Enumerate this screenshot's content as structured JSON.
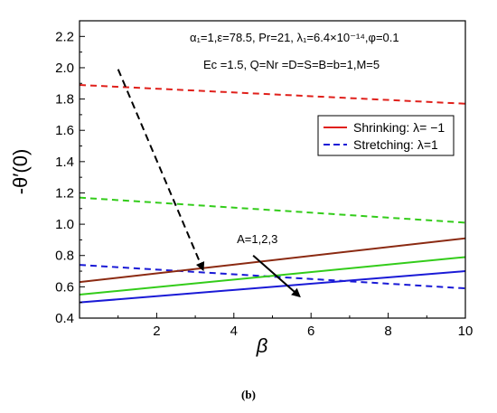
{
  "chart_data": {
    "type": "line",
    "xlabel": "β",
    "ylabel": "-θ′(0)",
    "xlim": [
      0,
      10
    ],
    "ylim": [
      0.4,
      2.3
    ],
    "x_ticks": [
      "2",
      "4",
      "6",
      "8",
      "10"
    ],
    "y_ticks": [
      "0.4",
      "0.6",
      "0.8",
      "1.0",
      "1.2",
      "1.4",
      "1.6",
      "1.8",
      "2.0",
      "2.2"
    ],
    "x_tick_values": [
      2,
      4,
      6,
      8,
      10
    ],
    "y_tick_values": [
      0.4,
      0.6,
      0.8,
      1.0,
      1.2,
      1.4,
      1.6,
      1.8,
      2.0,
      2.2
    ],
    "params_line1": "α₁=1,ε=78.5, Pr=21, λ₁=6.4×10⁻¹⁴,φ=0.1",
    "params_line2": "Ec =1.5, Q=Nr =D=S=B=b=1,M=5",
    "annotation": "A=1,2,3",
    "legend": [
      {
        "label": "Shrinking: λ= −1",
        "color": "#e0201b",
        "dash": "solid"
      },
      {
        "label": "Stretching: λ=1",
        "color": "#1a1ad6",
        "dash": "dashed"
      }
    ],
    "series": [
      {
        "group": "stretching",
        "color": "#e0201b",
        "dash": "dashed",
        "x": [
          0,
          10
        ],
        "y": [
          1.89,
          1.77
        ]
      },
      {
        "group": "stretching",
        "color": "#33cc1a",
        "dash": "dashed",
        "x": [
          0,
          10
        ],
        "y": [
          1.17,
          1.01
        ]
      },
      {
        "group": "stretching",
        "color": "#1a1ad6",
        "dash": "dashed",
        "x": [
          0,
          10
        ],
        "y": [
          0.74,
          0.59
        ]
      },
      {
        "group": "shrinking",
        "color": "#8b2a12",
        "dash": "solid",
        "x": [
          0,
          10
        ],
        "y": [
          0.63,
          0.91
        ]
      },
      {
        "group": "shrinking",
        "color": "#33cc1a",
        "dash": "solid",
        "x": [
          0,
          10
        ],
        "y": [
          0.55,
          0.79
        ]
      },
      {
        "group": "shrinking",
        "color": "#1a1ad6",
        "dash": "solid",
        "x": [
          0,
          10
        ],
        "y": [
          0.5,
          0.7
        ]
      }
    ],
    "arrows": [
      {
        "style": "dashed",
        "x": [
          1.0,
          3.2
        ],
        "y": [
          1.99,
          0.71
        ]
      },
      {
        "style": "solid",
        "x": [
          4.5,
          5.7
        ],
        "y": [
          0.8,
          0.54
        ]
      }
    ],
    "annotation_pos": {
      "x": 4.5,
      "y": 0.88
    },
    "grid": false
  },
  "caption": "(b)"
}
